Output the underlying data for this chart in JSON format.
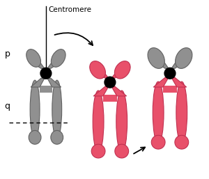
{
  "bg_color": "#ffffff",
  "gray_color": "#909090",
  "gray_outline": "#606060",
  "pink_color": "#e8506a",
  "pink_outline": "#c03050",
  "black_color": "#000000",
  "centromere_label": "Centromere",
  "p_label": "p",
  "q_label": "q",
  "fig_width": 3.0,
  "fig_height": 2.57,
  "dpi": 100
}
